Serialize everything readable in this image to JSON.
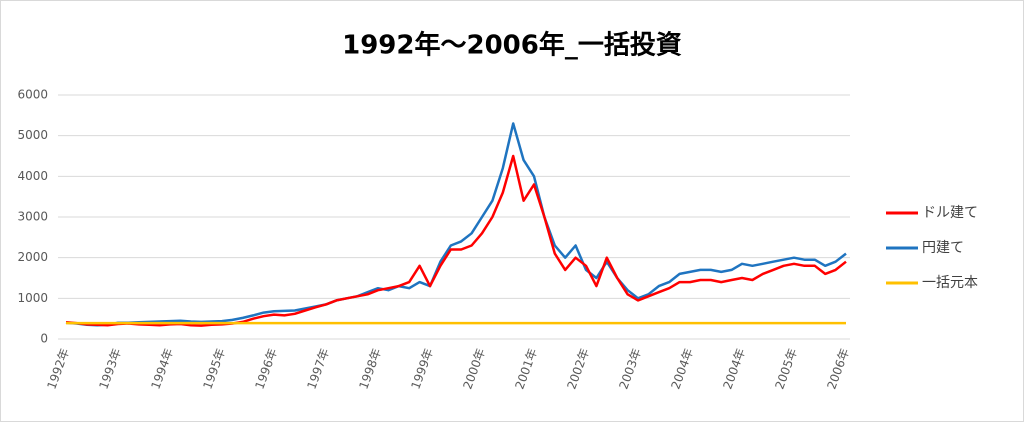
{
  "chart_data": {
    "type": "line",
    "title": "1992年～2006年_一括投資",
    "categories": [
      "1992年",
      null,
      null,
      null,
      null,
      "1993年",
      null,
      null,
      null,
      null,
      "1994年",
      null,
      null,
      null,
      null,
      "1995年",
      null,
      null,
      null,
      null,
      "1996年",
      null,
      null,
      null,
      null,
      "1997年",
      null,
      null,
      null,
      null,
      "1998年",
      null,
      null,
      null,
      null,
      "1999年",
      null,
      null,
      null,
      null,
      "2000年",
      null,
      null,
      null,
      null,
      "2001年",
      null,
      null,
      null,
      null,
      "2002年",
      null,
      null,
      null,
      null,
      "2003年",
      null,
      null,
      null,
      null,
      "2004年",
      null,
      null,
      null,
      null,
      "2004年",
      null,
      null,
      null,
      null,
      "2005年",
      null,
      null,
      null,
      null,
      "2006年"
    ],
    "series": [
      {
        "name": "ドル建て",
        "color": "#ff0000",
        "values": [
          410,
          390,
          360,
          350,
          340,
          370,
          380,
          360,
          350,
          340,
          360,
          370,
          340,
          330,
          350,
          360,
          380,
          420,
          500,
          560,
          600,
          580,
          620,
          700,
          780,
          850,
          950,
          1000,
          1050,
          1100,
          1200,
          1250,
          1300,
          1400,
          1800,
          1300,
          1800,
          2200,
          2200,
          2300,
          2600,
          3000,
          3600,
          4500,
          3400,
          3800,
          3000,
          2100,
          1700,
          2000,
          1800,
          1300,
          2000,
          1500,
          1100,
          950,
          1050,
          1150,
          1250,
          1400,
          1400,
          1450,
          1450,
          1400,
          1450,
          1500,
          1450,
          1600,
          1700,
          1800,
          1850,
          1800,
          1800,
          1600,
          1700,
          1900
        ]
      },
      {
        "name": "円建て",
        "color": "#1f74c0",
        "values": [
          400,
          380,
          350,
          340,
          350,
          400,
          400,
          410,
          420,
          430,
          440,
          450,
          430,
          420,
          430,
          440,
          470,
          520,
          580,
          650,
          680,
          690,
          700,
          750,
          800,
          850,
          950,
          1000,
          1050,
          1150,
          1250,
          1200,
          1300,
          1250,
          1400,
          1300,
          1900,
          2300,
          2400,
          2600,
          3000,
          3400,
          4200,
          5300,
          4400,
          4000,
          3000,
          2300,
          2000,
          2300,
          1700,
          1500,
          1900,
          1500,
          1200,
          1000,
          1100,
          1300,
          1400,
          1600,
          1650,
          1700,
          1700,
          1650,
          1700,
          1850,
          1800,
          1850,
          1900,
          1950,
          2000,
          1950,
          1950,
          1800,
          1900,
          2100
        ]
      },
      {
        "name": "一括元本",
        "color": "#ffc000",
        "values": [
          390,
          390,
          390,
          390,
          390,
          390,
          390,
          390,
          390,
          390,
          390,
          390,
          390,
          390,
          390,
          390,
          390,
          390,
          390,
          390,
          390,
          390,
          390,
          390,
          390,
          390,
          390,
          390,
          390,
          390,
          390,
          390,
          390,
          390,
          390,
          390,
          390,
          390,
          390,
          390,
          390,
          390,
          390,
          390,
          390,
          390,
          390,
          390,
          390,
          390,
          390,
          390,
          390,
          390,
          390,
          390,
          390,
          390,
          390,
          390,
          390,
          390,
          390,
          390,
          390,
          390,
          390,
          390,
          390,
          390,
          390,
          390,
          390,
          390,
          390,
          390
        ]
      }
    ],
    "ylim": [
      0,
      6000
    ],
    "yticks": [
      0,
      1000,
      2000,
      3000,
      4000,
      5000,
      6000
    ],
    "grid": true,
    "legend": "right"
  }
}
